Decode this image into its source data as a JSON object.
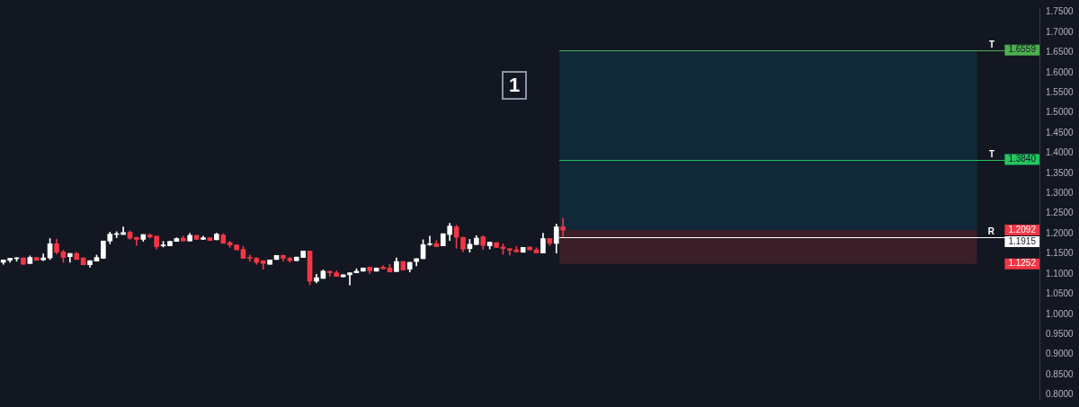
{
  "chart_data": {
    "type": "candlestick",
    "categories": [
      null,
      null,
      null,
      null,
      null,
      null,
      null,
      null,
      null,
      null,
      null,
      null,
      null,
      null,
      null,
      null,
      null,
      null,
      null,
      null,
      null,
      null,
      null,
      null,
      null,
      null,
      null,
      null,
      null,
      null,
      null,
      null,
      null,
      null,
      null,
      null,
      null,
      null,
      null,
      null,
      null,
      null,
      null,
      null,
      null,
      null,
      null,
      null,
      null,
      null,
      null,
      null,
      null,
      null,
      null,
      null,
      null,
      null,
      null,
      null,
      null,
      null,
      null,
      null,
      null,
      null,
      null,
      null,
      null,
      null,
      null,
      null,
      null,
      null,
      null,
      null,
      null,
      null,
      null,
      null,
      null,
      null,
      null,
      null,
      null,
      null,
      null,
      null,
      null,
      null,
      null,
      null,
      null,
      null,
      null,
      null,
      null,
      null,
      null,
      null,
      null,
      null,
      null,
      null,
      null,
      null,
      null,
      null,
      null,
      null,
      null,
      null,
      null,
      null,
      null,
      null,
      null,
      null,
      null,
      null,
      null,
      null,
      null,
      null,
      null,
      null,
      null,
      null,
      null,
      null,
      null,
      null,
      null,
      null,
      null,
      null,
      null,
      null,
      null,
      null,
      null,
      null,
      null,
      null,
      null,
      null,
      null,
      null,
      null,
      null,
      null,
      null,
      null,
      null,
      null,
      null
    ],
    "ohlc": [
      [
        1.129,
        1.135,
        1.124,
        1.135
      ],
      [
        1.134,
        1.139,
        1.129,
        1.139
      ],
      [
        1.138,
        1.141,
        1.132,
        1.139
      ],
      [
        1.14,
        1.14,
        1.124,
        1.124
      ],
      [
        1.126,
        1.145,
        1.126,
        1.141
      ],
      [
        1.141,
        1.141,
        1.134,
        1.134
      ],
      [
        1.135,
        1.15,
        1.133,
        1.14
      ],
      [
        1.14,
        1.188,
        1.136,
        1.175
      ],
      [
        1.175,
        1.186,
        1.15,
        1.154
      ],
      [
        1.155,
        1.159,
        1.129,
        1.141
      ],
      [
        1.143,
        1.151,
        1.129,
        1.151
      ],
      [
        1.151,
        1.154,
        1.136,
        1.136
      ],
      [
        1.14,
        1.14,
        1.123,
        1.123
      ],
      [
        1.123,
        1.133,
        1.117,
        1.133
      ],
      [
        1.132,
        1.147,
        1.132,
        1.141
      ],
      [
        1.139,
        1.182,
        1.139,
        1.182
      ],
      [
        1.182,
        1.204,
        1.175,
        1.199
      ],
      [
        1.198,
        1.205,
        1.19,
        1.2
      ],
      [
        1.198,
        1.217,
        1.198,
        1.203
      ],
      [
        1.204,
        1.207,
        1.186,
        1.189
      ],
      [
        1.191,
        1.191,
        1.171,
        1.186
      ],
      [
        1.186,
        1.198,
        1.181,
        1.198
      ],
      [
        1.197,
        1.2,
        1.189,
        1.192
      ],
      [
        1.194,
        1.194,
        1.162,
        1.168
      ],
      [
        1.17,
        1.181,
        1.167,
        1.172
      ],
      [
        1.17,
        1.181,
        1.17,
        1.181
      ],
      [
        1.181,
        1.19,
        1.181,
        1.188
      ],
      [
        1.189,
        1.194,
        1.182,
        1.182
      ],
      [
        1.182,
        1.201,
        1.182,
        1.196
      ],
      [
        1.196,
        1.196,
        1.186,
        1.186
      ],
      [
        1.186,
        1.194,
        1.186,
        1.19
      ],
      [
        1.19,
        1.19,
        1.183,
        1.183
      ],
      [
        1.185,
        1.201,
        1.185,
        1.199
      ],
      [
        1.197,
        1.2,
        1.176,
        1.176
      ],
      [
        1.178,
        1.181,
        1.166,
        1.172
      ],
      [
        1.172,
        1.172,
        1.16,
        1.16
      ],
      [
        1.161,
        1.169,
        1.139,
        1.139
      ],
      [
        1.14,
        1.147,
        1.132,
        1.139
      ],
      [
        1.139,
        1.141,
        1.124,
        1.129
      ],
      [
        1.133,
        1.133,
        1.112,
        1.126
      ],
      [
        1.124,
        1.135,
        1.124,
        1.135
      ],
      [
        1.136,
        1.146,
        1.136,
        1.146
      ],
      [
        1.146,
        1.147,
        1.132,
        1.139
      ],
      [
        1.139,
        1.142,
        1.129,
        1.133
      ],
      [
        1.133,
        1.142,
        1.133,
        1.142
      ],
      [
        1.141,
        1.157,
        1.141,
        1.157
      ],
      [
        1.157,
        1.157,
        1.073,
        1.082
      ],
      [
        1.082,
        1.099,
        1.078,
        1.091
      ],
      [
        1.089,
        1.11,
        1.089,
        1.107
      ],
      [
        1.107,
        1.107,
        1.094,
        1.103
      ],
      [
        1.103,
        1.108,
        1.094,
        1.094
      ],
      [
        1.093,
        1.098,
        1.093,
        1.098
      ],
      [
        1.098,
        1.103,
        1.073,
        1.103
      ],
      [
        1.103,
        1.113,
        1.103,
        1.107
      ],
      [
        1.107,
        1.115,
        1.107,
        1.115
      ],
      [
        1.117,
        1.117,
        1.101,
        1.108
      ],
      [
        1.107,
        1.115,
        1.107,
        1.115
      ],
      [
        1.117,
        1.121,
        1.113,
        1.113
      ],
      [
        1.115,
        1.124,
        1.105,
        1.105
      ],
      [
        1.106,
        1.14,
        1.106,
        1.131
      ],
      [
        1.131,
        1.131,
        1.11,
        1.11
      ],
      [
        1.112,
        1.129,
        1.105,
        1.129
      ],
      [
        1.131,
        1.138,
        1.12,
        1.138
      ],
      [
        1.138,
        1.185,
        1.138,
        1.173
      ],
      [
        1.173,
        1.194,
        1.171,
        1.175
      ],
      [
        1.175,
        1.183,
        1.168,
        1.168
      ],
      [
        1.17,
        1.2,
        1.17,
        1.2
      ],
      [
        1.198,
        1.226,
        1.183,
        1.219
      ],
      [
        1.217,
        1.221,
        1.164,
        1.191
      ],
      [
        1.191,
        1.191,
        1.155,
        1.162
      ],
      [
        1.163,
        1.186,
        1.154,
        1.174
      ],
      [
        1.173,
        1.195,
        1.173,
        1.189
      ],
      [
        1.192,
        1.195,
        1.161,
        1.171
      ],
      [
        1.17,
        1.179,
        1.162,
        1.179
      ],
      [
        1.178,
        1.178,
        1.166,
        1.166
      ],
      [
        1.167,
        1.175,
        1.149,
        1.163
      ],
      [
        1.163,
        1.163,
        1.147,
        1.159
      ],
      [
        1.16,
        1.168,
        1.155,
        1.155
      ],
      [
        1.154,
        1.166,
        1.154,
        1.166
      ],
      [
        1.167,
        1.167,
        1.16,
        1.16
      ],
      [
        1.16,
        1.165,
        1.152,
        1.152
      ],
      [
        1.152,
        1.201,
        1.152,
        1.188
      ],
      [
        1.188,
        1.188,
        1.171,
        1.176
      ],
      [
        1.176,
        1.224,
        1.152,
        1.217
      ],
      [
        1.217,
        1.238,
        1.193,
        1.209
      ],
      null,
      null,
      null,
      null,
      null,
      null,
      null,
      null,
      null,
      null,
      null,
      null,
      null,
      null,
      null,
      null,
      null,
      null,
      null,
      null,
      null,
      null,
      null,
      null,
      null,
      null,
      null,
      null,
      null,
      null,
      null,
      null,
      null,
      null,
      null,
      null,
      null,
      null,
      null,
      null,
      null,
      null,
      null,
      null,
      null,
      null,
      null,
      null,
      null,
      null,
      null,
      null,
      null,
      null,
      null,
      null,
      null,
      null,
      null,
      null,
      null,
      null,
      null,
      null,
      null,
      null,
      null,
      null,
      null,
      null,
      null
    ],
    "colors": [
      "#ffffff",
      "#ffffff",
      "#ffffff",
      "#f23645",
      "#ffffff",
      "#f23645",
      "#ffffff",
      "#ffffff",
      "#f23645",
      "#f23645",
      "#ffffff",
      "#f23645",
      "#f23645",
      "#ffffff",
      "#ffffff",
      "#ffffff",
      "#ffffff",
      "#ffffff",
      "#ffffff",
      "#f23645",
      "#f23645",
      "#ffffff",
      "#f23645",
      "#f23645",
      "#ffffff",
      "#ffffff",
      "#ffffff",
      "#f23645",
      "#ffffff",
      "#f23645",
      "#ffffff",
      "#f23645",
      "#ffffff",
      "#f23645",
      "#f23645",
      "#f23645",
      "#f23645",
      "#f23645",
      "#f23645",
      "#f23645",
      "#ffffff",
      "#ffffff",
      "#f23645",
      "#f23645",
      "#ffffff",
      "#ffffff",
      "#f23645",
      "#ffffff",
      "#ffffff",
      "#f23645",
      "#f23645",
      "#ffffff",
      "#ffffff",
      "#ffffff",
      "#ffffff",
      "#f23645",
      "#ffffff",
      "#f23645",
      "#f23645",
      "#ffffff",
      "#f23645",
      "#ffffff",
      "#ffffff",
      "#ffffff",
      "#ffffff",
      "#f23645",
      "#ffffff",
      "#ffffff",
      "#f23645",
      "#f23645",
      "#ffffff",
      "#ffffff",
      "#f23645",
      "#ffffff",
      "#f23645",
      "#f23645",
      "#f23645",
      "#f23645",
      "#ffffff",
      "#f23645",
      "#f23645",
      "#ffffff",
      "#f23645",
      "#ffffff",
      "#f23645",
      null,
      null,
      null,
      null,
      null,
      null,
      null,
      null,
      null,
      null,
      null,
      null,
      null,
      null,
      null,
      null,
      null,
      null,
      null,
      null,
      null,
      null,
      null,
      null,
      null,
      null,
      null,
      null,
      null,
      null,
      null,
      null,
      null,
      null,
      null,
      null,
      null,
      null,
      null,
      null,
      null,
      null,
      null,
      null,
      null,
      null,
      null,
      null,
      null,
      null,
      null,
      null,
      null,
      null,
      null,
      null,
      null,
      null,
      null,
      null,
      null,
      null,
      null,
      null,
      null,
      null,
      null,
      null,
      null,
      null,
      null
    ],
    "ylim": [
      0.79,
      1.76
    ],
    "yticks": [
      {
        "value": 0.8,
        "label": "0.8000"
      },
      {
        "value": 0.85,
        "label": "0.8500"
      },
      {
        "value": 0.9,
        "label": "0.9000"
      },
      {
        "value": 0.95,
        "label": "0.9500"
      },
      {
        "value": 1.0,
        "label": "1.0000"
      },
      {
        "value": 1.05,
        "label": "1.0500"
      },
      {
        "value": 1.1,
        "label": "1.1000"
      },
      {
        "value": 1.15,
        "label": "1.1500"
      },
      {
        "value": 1.2,
        "label": "1.2000"
      },
      {
        "value": 1.25,
        "label": "1.2500"
      },
      {
        "value": 1.3,
        "label": "1.3000"
      },
      {
        "value": 1.35,
        "label": "1.3500"
      },
      {
        "value": 1.4,
        "label": "1.4000"
      },
      {
        "value": 1.45,
        "label": "1.4500"
      },
      {
        "value": 1.5,
        "label": "1.5000"
      },
      {
        "value": 1.55,
        "label": "1.5500"
      },
      {
        "value": 1.6,
        "label": "1.6000"
      },
      {
        "value": 1.65,
        "label": "1.6500"
      },
      {
        "value": 1.7,
        "label": "1.7000"
      },
      {
        "value": 1.75,
        "label": "1.7500"
      }
    ],
    "tick_labels": "y",
    "ref_lines": [
      {
        "axis": "y",
        "value": 1.6559,
        "label": "T",
        "color": "#4caf50"
      },
      {
        "axis": "y",
        "value": 1.384,
        "label": "T",
        "color": "#22c55e"
      },
      {
        "axis": "y",
        "value": 1.1915,
        "label": "R",
        "color": "#ffffff"
      }
    ],
    "bands": [
      {
        "axis": "y",
        "from": 1.2092,
        "to": 1.6559,
        "color": "#12293a"
      },
      {
        "axis": "y",
        "from": 1.1252,
        "to": 1.2092,
        "color": "#3a1f28"
      }
    ],
    "annotations": [
      "1",
      {
        "text": "1.6559",
        "y": 1.6559
      },
      {
        "text": "1.3840",
        "y": 1.384
      },
      {
        "text": "1.2092",
        "y": 1.2092
      },
      {
        "text": "1.1915",
        "y": 1.1915
      },
      {
        "text": "1.1252",
        "y": 1.1252
      }
    ]
  }
}
